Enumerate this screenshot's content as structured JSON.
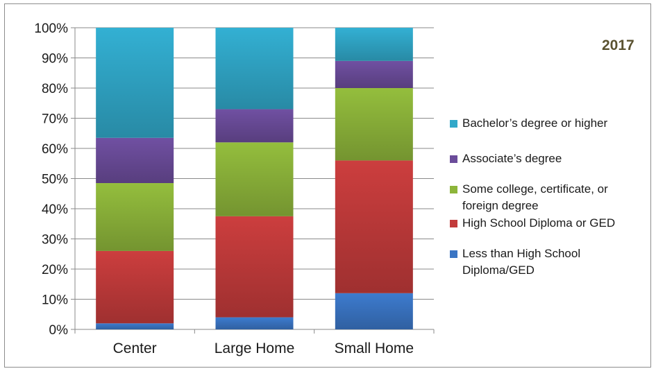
{
  "chart_data": {
    "type": "bar",
    "stacked": true,
    "title": "2017",
    "categories": [
      "Center",
      "Large Home",
      "Small Home"
    ],
    "ylim": [
      0,
      100
    ],
    "yticks": [
      "0%",
      "10%",
      "20%",
      "30%",
      "40%",
      "50%",
      "60%",
      "70%",
      "80%",
      "90%",
      "100%"
    ],
    "grid": true,
    "legend_position": "right",
    "series": [
      {
        "name": "Less than High School Diploma/GED",
        "color": "#3a75c4",
        "values": [
          2,
          4,
          12
        ]
      },
      {
        "name": "High School Diploma or GED",
        "color": "#c23b3b",
        "values": [
          24,
          33.5,
          44
        ]
      },
      {
        "name": "Some college, certificate, or foreign degree",
        "color": "#8db53a",
        "values": [
          22.5,
          24.5,
          24
        ]
      },
      {
        "name": "Associate’s degree",
        "color": "#6b4c9a",
        "values": [
          15,
          11,
          9
        ]
      },
      {
        "name": "Bachelor’s degree or higher",
        "color": "#31a8c9",
        "values": [
          36.5,
          27,
          11
        ]
      }
    ]
  }
}
